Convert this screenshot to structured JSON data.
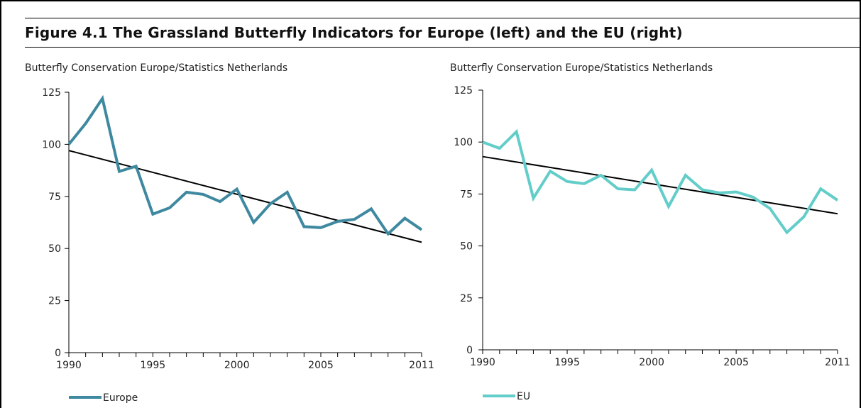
{
  "figure": {
    "title": "Figure 4.1  The Grassland Butterfly Indicators for Europe (left) and the EU (right)"
  },
  "chart_data": [
    {
      "type": "line",
      "source": "Butterfly Conservation Europe/Statistics Netherlands",
      "title": "",
      "xlabel": "",
      "ylabel": "",
      "xlim": [
        1990,
        2011
      ],
      "ylim": [
        0,
        125
      ],
      "x_ticks": [
        1990,
        1995,
        2000,
        2005,
        2011
      ],
      "y_ticks": [
        0,
        25,
        50,
        75,
        100,
        125
      ],
      "legend_position": "bottom-left",
      "grid": false,
      "series": [
        {
          "name": "Europe",
          "color": "#3f89a0",
          "x": [
            1990,
            1991,
            1992,
            1993,
            1994,
            1995,
            1996,
            1997,
            1998,
            1999,
            2000,
            2001,
            2002,
            2003,
            2004,
            2005,
            2006,
            2007,
            2008,
            2009,
            2010,
            2011
          ],
          "values": [
            100,
            110,
            122,
            87,
            89.5,
            66.5,
            69.5,
            77,
            76,
            72.5,
            78.5,
            62.5,
            71.5,
            77,
            60.5,
            60,
            63,
            64,
            69,
            57,
            64.5,
            59
          ]
        }
      ],
      "trend": {
        "color": "#000000",
        "x": [
          1990,
          2011
        ],
        "values": [
          97,
          53
        ]
      }
    },
    {
      "type": "line",
      "source": "Butterfly Conservation Europe/Statistics Netherlands",
      "title": "",
      "xlabel": "",
      "ylabel": "",
      "xlim": [
        1990,
        2011
      ],
      "ylim": [
        0,
        125
      ],
      "x_ticks": [
        1990,
        1995,
        2000,
        2005,
        2011
      ],
      "y_ticks": [
        0,
        25,
        50,
        75,
        100,
        125
      ],
      "legend_position": "bottom-left",
      "grid": false,
      "series": [
        {
          "name": "EU",
          "color": "#63cdc9",
          "x": [
            1990,
            1991,
            1992,
            1993,
            1994,
            1995,
            1996,
            1997,
            1998,
            1999,
            2000,
            2001,
            2002,
            2003,
            2004,
            2005,
            2006,
            2007,
            2008,
            2009,
            2010,
            2011
          ],
          "values": [
            100,
            97,
            105,
            73,
            86,
            81,
            80,
            84,
            77.5,
            77,
            86.5,
            69,
            84,
            77,
            75.5,
            76,
            73.5,
            68,
            56.5,
            64,
            77.5,
            72
          ]
        }
      ],
      "trend": {
        "color": "#000000",
        "x": [
          1990,
          2011
        ],
        "values": [
          93,
          65.5
        ]
      }
    }
  ]
}
